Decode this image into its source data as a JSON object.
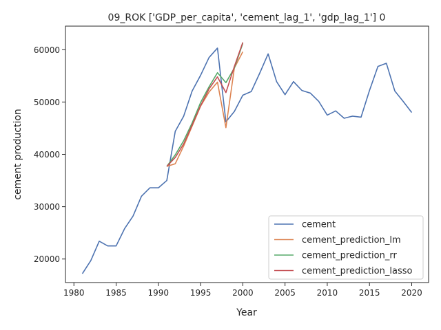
{
  "chart_data": {
    "type": "line",
    "title": "09_ROK ['GDP_per_capita', 'cement_lag_1', 'gdp_lag_1'] 0",
    "xlabel": "Year",
    "ylabel": "cement production",
    "xlim": [
      1979.0,
      2022.0
    ],
    "ylim": [
      15500,
      64500
    ],
    "xticks": [
      1980,
      1985,
      1990,
      1995,
      2000,
      2005,
      2010,
      2015,
      2020
    ],
    "yticks": [
      20000,
      30000,
      40000,
      50000,
      60000
    ],
    "legend_position": "lower-right",
    "grid": false,
    "series": [
      {
        "name": "cement",
        "color": "#4c72b0",
        "x": [
          1981,
          1982,
          1983,
          1984,
          1985,
          1986,
          1987,
          1988,
          1989,
          1990,
          1991,
          1992,
          1993,
          1994,
          1995,
          1996,
          1997,
          1998,
          1999,
          2000,
          2001,
          2002,
          2003,
          2004,
          2005,
          2006,
          2007,
          2008,
          2009,
          2010,
          2011,
          2012,
          2013,
          2014,
          2015,
          2016,
          2017,
          2018,
          2019,
          2020
        ],
        "values": [
          17200,
          19700,
          23400,
          22500,
          22500,
          25800,
          28200,
          32000,
          33600,
          33600,
          35000,
          44400,
          47300,
          52100,
          55100,
          58500,
          60300,
          46200,
          48200,
          51300,
          52000,
          55500,
          59200,
          53900,
          51400,
          53900,
          52200,
          51700,
          50100,
          47500,
          48300,
          46900,
          47300,
          47100,
          52200,
          56800,
          57400,
          52100,
          50100,
          48000
        ]
      },
      {
        "name": "cement_prediction_lm",
        "color": "#dd8452",
        "x": [
          1991,
          1992,
          1993,
          1994,
          1995,
          1996,
          1997,
          1998,
          1999,
          2000
        ],
        "values": [
          37700,
          38200,
          41600,
          45400,
          49200,
          51900,
          53800,
          45100,
          56500,
          59600
        ]
      },
      {
        "name": "cement_prediction_rr",
        "color": "#55a868",
        "x": [
          1991,
          1992,
          1993,
          1994,
          1995,
          1996,
          1997,
          1998,
          1999,
          2000
        ],
        "values": [
          37700,
          39900,
          42600,
          46000,
          49900,
          52900,
          55600,
          53700,
          56500,
          61200
        ]
      },
      {
        "name": "cement_prediction_lasso",
        "color": "#c44e52",
        "x": [
          1991,
          1992,
          1993,
          1994,
          1995,
          1996,
          1997,
          1998,
          1999,
          2000
        ],
        "values": [
          37700,
          39400,
          42000,
          45600,
          49300,
          52500,
          54800,
          51800,
          56800,
          61400
        ]
      }
    ]
  }
}
